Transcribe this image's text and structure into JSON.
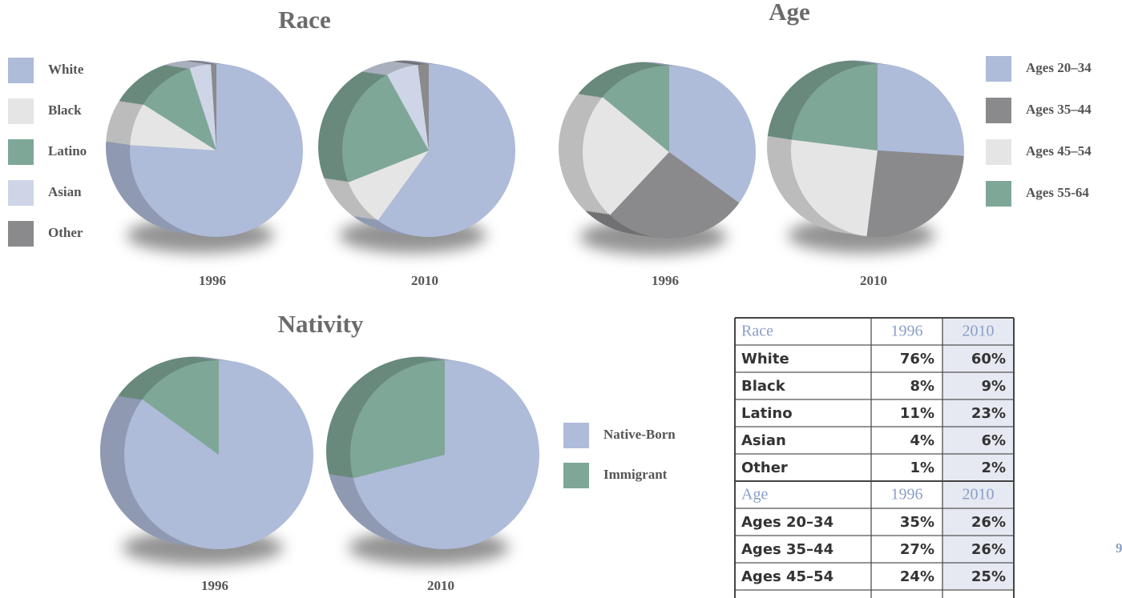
{
  "chart_data": [
    {
      "type": "pie",
      "title": "Race",
      "legend": "left",
      "categories": [
        "White",
        "Black",
        "Latino",
        "Asian",
        "Other"
      ],
      "colors": [
        "#aebbd9",
        "#e5e5e5",
        "#7fa797",
        "#cdd5e7",
        "#8a8a8c"
      ],
      "series": [
        {
          "name": "1996",
          "values": [
            76,
            8,
            11,
            4,
            1
          ]
        },
        {
          "name": "2010",
          "values": [
            60,
            9,
            23,
            6,
            2
          ]
        }
      ]
    },
    {
      "type": "pie",
      "title": "Age",
      "legend": "right",
      "categories": [
        "Ages 20–34",
        "Ages 35–44",
        "Ages 45–54",
        "Ages 55-64"
      ],
      "colors": [
        "#aebbd9",
        "#8a8a8c",
        "#e5e5e5",
        "#7fa797"
      ],
      "series": [
        {
          "name": "1996",
          "values": [
            35,
            27,
            24,
            14
          ]
        },
        {
          "name": "2010",
          "values": [
            26,
            26,
            25,
            23
          ]
        }
      ]
    },
    {
      "type": "pie",
      "title": "Nativity",
      "legend": "right",
      "categories": [
        "Native-Born",
        "Immigrant"
      ],
      "colors": [
        "#aebbd9",
        "#7fa797"
      ],
      "series": [
        {
          "name": "1996",
          "values": [
            85,
            15
          ]
        },
        {
          "name": "2010",
          "values": [
            71,
            29
          ]
        }
      ]
    }
  ],
  "table": {
    "sections": [
      {
        "header": [
          "Race",
          "1996",
          "2010"
        ],
        "rows": [
          [
            "White",
            "76%",
            "60%"
          ],
          [
            "Black",
            "8%",
            "9%"
          ],
          [
            "Latino",
            "11%",
            "23%"
          ],
          [
            "Asian",
            "4%",
            "6%"
          ],
          [
            "Other",
            "1%",
            "2%"
          ]
        ]
      },
      {
        "header": [
          "Age",
          "1996",
          "2010"
        ],
        "rows": [
          [
            "Ages 20–34",
            "35%",
            "26%"
          ],
          [
            "Ages 35–44",
            "27%",
            "26%"
          ],
          [
            "Ages 45–54",
            "24%",
            "25%"
          ]
        ]
      }
    ]
  },
  "page_number": "9"
}
